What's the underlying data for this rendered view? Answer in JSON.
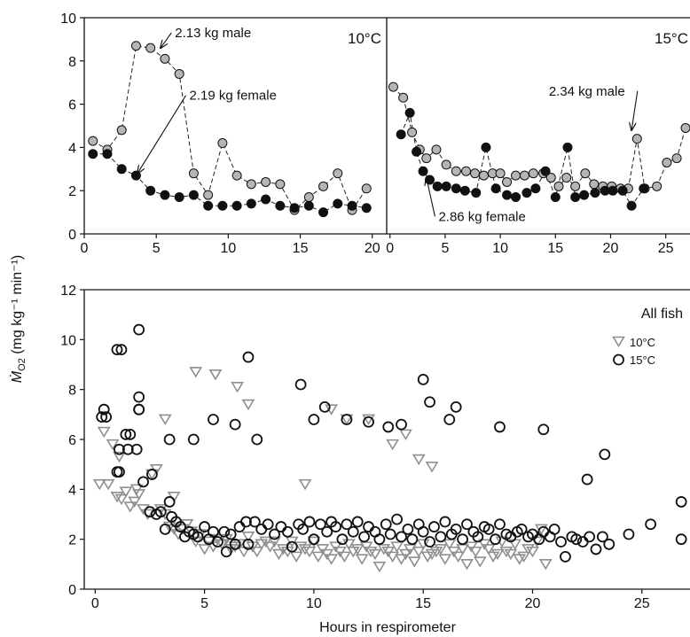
{
  "figure": {
    "ylabel_main": "Ṁ",
    "ylabel_sub": "O2",
    "ylabel_units": " (mg kg⁻¹ min⁻¹)",
    "xlabel": "Hours in respirometer"
  },
  "colors": {
    "gray": "#b5b5b5",
    "black": "#111111",
    "gray_tri": "#8f8f8f"
  },
  "chart_data": [
    {
      "id": "tl",
      "type": "line",
      "panel_label": "10°C",
      "xlim": [
        0,
        21
      ],
      "ylim": [
        0,
        10
      ],
      "xticks": [
        0,
        5,
        10,
        15,
        20
      ],
      "yticks": [
        0,
        2,
        4,
        6,
        8,
        10
      ],
      "series": [
        {
          "name": "2.13 kg male",
          "color": "gray",
          "x": [
            0.6,
            1.6,
            2.6,
            3.6,
            4.6,
            5.6,
            6.6,
            7.6,
            8.6,
            9.6,
            10.6,
            11.6,
            12.6,
            13.6,
            14.6,
            15.6,
            16.6,
            17.6,
            18.6,
            19.6
          ],
          "y": [
            4.3,
            3.9,
            4.8,
            8.7,
            8.6,
            8.1,
            7.4,
            2.8,
            1.8,
            4.2,
            2.7,
            2.3,
            2.4,
            2.3,
            1.1,
            1.7,
            2.2,
            2.8,
            1.1,
            2.1
          ]
        },
        {
          "name": "2.19 kg female",
          "color": "black",
          "x": [
            0.6,
            1.6,
            2.6,
            3.6,
            4.6,
            5.6,
            6.6,
            7.6,
            8.6,
            9.6,
            10.6,
            11.6,
            12.6,
            13.6,
            14.6,
            15.6,
            16.6,
            17.6,
            18.6,
            19.6
          ],
          "y": [
            3.7,
            3.7,
            3.0,
            2.7,
            2.0,
            1.8,
            1.7,
            1.8,
            1.3,
            1.3,
            1.3,
            1.4,
            1.6,
            1.3,
            1.2,
            1.3,
            1.0,
            1.4,
            1.3,
            1.2
          ]
        }
      ],
      "annotations": [
        {
          "text": "2.13 kg male",
          "label_x": 6.3,
          "label_y": 9.1,
          "arrow_to": [
            5.3,
            8.6
          ]
        },
        {
          "text": "2.19 kg female",
          "label_x": 7.3,
          "label_y": 6.2,
          "arrow_to": [
            3.7,
            2.8
          ]
        }
      ]
    },
    {
      "id": "tr",
      "type": "line",
      "panel_label": "15°C",
      "xlim": [
        -0.3,
        27.2
      ],
      "ylim": [
        0,
        10
      ],
      "xticks": [
        0,
        5,
        10,
        15,
        20,
        25
      ],
      "yticks": [],
      "series": [
        {
          "name": "2.34 kg male",
          "color": "gray",
          "x": [
            0.3,
            1.2,
            2.0,
            2.7,
            3.3,
            4.2,
            5.1,
            6.0,
            6.9,
            7.7,
            8.5,
            9.3,
            10.0,
            10.6,
            11.4,
            12.2,
            13.0,
            13.9,
            14.6,
            15.3,
            16.0,
            16.8,
            17.7,
            18.5,
            19.3,
            20.1,
            20.9,
            21.6,
            22.4,
            23.1,
            24.2,
            25.1,
            26.0,
            26.8
          ],
          "y": [
            6.8,
            6.3,
            4.7,
            3.9,
            3.5,
            3.9,
            3.2,
            2.9,
            2.9,
            2.8,
            2.7,
            2.8,
            2.8,
            2.4,
            2.7,
            2.7,
            2.8,
            2.8,
            2.6,
            2.2,
            2.6,
            2.2,
            2.8,
            2.3,
            2.2,
            2.2,
            2.1,
            2.1,
            4.4,
            2.1,
            2.2,
            3.3,
            3.5,
            4.9
          ]
        },
        {
          "name": "2.86 kg female",
          "color": "black",
          "x": [
            1.0,
            1.8,
            2.4,
            3.0,
            3.6,
            4.3,
            5.1,
            6.0,
            6.8,
            7.8,
            8.7,
            9.6,
            10.6,
            11.4,
            12.4,
            13.2,
            14.1,
            15.0,
            16.1,
            16.8,
            17.6,
            18.6,
            19.5,
            20.2,
            21.1,
            21.9,
            23.0
          ],
          "y": [
            4.6,
            5.6,
            3.8,
            2.9,
            2.5,
            2.2,
            2.2,
            2.1,
            2.0,
            1.9,
            4.0,
            2.1,
            1.8,
            1.7,
            1.9,
            2.1,
            2.9,
            1.7,
            4.0,
            1.7,
            1.8,
            1.9,
            2.0,
            2.0,
            2.0,
            1.3,
            2.1
          ]
        }
      ],
      "annotations": [
        {
          "text": "2.34 kg male",
          "label_x": 14.4,
          "label_y": 6.4,
          "arrow_to": [
            21.9,
            4.8
          ]
        },
        {
          "text": "2.86 kg female",
          "label_x": 4.4,
          "label_y": 0.6,
          "arrow_to": [
            3.3,
            2.6
          ]
        }
      ]
    },
    {
      "id": "bottom",
      "type": "scatter",
      "panel_label": "All fish",
      "xlim": [
        -0.5,
        27.2
      ],
      "ylim": [
        0,
        12
      ],
      "xticks": [
        0,
        5,
        10,
        15,
        20,
        25
      ],
      "yticks": [
        0,
        2,
        4,
        6,
        8,
        10,
        12
      ],
      "legend": {
        "placement": "top-right",
        "entries": [
          {
            "label": "10°C",
            "marker": "triangle"
          },
          {
            "label": "15°C",
            "marker": "circle"
          }
        ]
      },
      "series": [
        {
          "name": "10°C",
          "marker": "triangle",
          "x": [
            0.2,
            0.4,
            0.6,
            0.8,
            1.0,
            1.2,
            1.4,
            1.6,
            1.8,
            2.0,
            2.2,
            2.4,
            2.6,
            2.8,
            3.0,
            3.2,
            3.4,
            3.6,
            3.8,
            4.0,
            4.2,
            4.4,
            4.6,
            4.8,
            5.0,
            5.2,
            5.4,
            5.6,
            5.8,
            6.0,
            6.2,
            6.4,
            6.6,
            6.8,
            7.0,
            7.2,
            7.4,
            7.6,
            7.8,
            8.0,
            8.2,
            8.4,
            8.6,
            8.8,
            9.0,
            9.2,
            9.4,
            9.6,
            9.8,
            10.0,
            10.2,
            10.4,
            10.6,
            10.8,
            11.0,
            11.2,
            11.4,
            11.6,
            11.8,
            12.0,
            12.2,
            12.4,
            12.6,
            12.8,
            13.0,
            13.2,
            13.4,
            13.6,
            13.8,
            14.0,
            14.2,
            14.4,
            14.6,
            14.8,
            15.0,
            15.2,
            15.4,
            15.6,
            15.8,
            16.0,
            16.2,
            16.4,
            16.6,
            16.8,
            17.0,
            17.2,
            17.4,
            17.6,
            17.8,
            18.0,
            18.2,
            18.4,
            18.6,
            18.8,
            19.0,
            19.2,
            19.4,
            19.6,
            19.8,
            20.0,
            20.2,
            20.4,
            20.6,
            1.1,
            1.9,
            3.2,
            3.6,
            4.6,
            5.5,
            6.5,
            7.0,
            9.6,
            10.8,
            11.5,
            12.5,
            13.6,
            14.2,
            14.8,
            15.4
          ],
          "y": [
            4.2,
            6.3,
            4.2,
            5.8,
            3.7,
            3.6,
            3.9,
            3.3,
            3.5,
            3.8,
            3.2,
            3.0,
            4.6,
            4.8,
            3.2,
            3.0,
            2.5,
            2.4,
            2.2,
            2.4,
            2.6,
            2.3,
            1.9,
            2.2,
            1.6,
            1.9,
            1.7,
            2.0,
            1.8,
            2.0,
            1.6,
            1.7,
            1.8,
            1.5,
            2.1,
            1.7,
            1.5,
            1.8,
            1.9,
            1.7,
            1.9,
            1.4,
            1.6,
            1.5,
            1.9,
            1.3,
            1.7,
            1.6,
            1.5,
            1.9,
            1.3,
            1.6,
            1.4,
            1.2,
            1.7,
            1.5,
            1.3,
            1.8,
            1.5,
            1.6,
            1.2,
            1.7,
            1.5,
            1.4,
            0.9,
            1.6,
            1.5,
            1.3,
            1.7,
            1.2,
            1.4,
            1.6,
            1.1,
            1.5,
            1.8,
            1.3,
            1.4,
            1.5,
            1.6,
            1.2,
            1.8,
            1.5,
            1.3,
            1.6,
            1.0,
            1.7,
            1.5,
            1.1,
            1.8,
            1.6,
            1.3,
            1.4,
            1.9,
            1.5,
            1.4,
            1.8,
            1.2,
            1.3,
            1.6,
            1.5,
            1.9,
            2.4,
            1.0,
            5.3,
            4.0,
            6.8,
            3.7,
            8.7,
            8.6,
            8.1,
            7.4,
            4.2,
            7.2,
            6.8,
            6.8,
            5.8,
            6.2,
            5.2,
            4.9
          ]
        },
        {
          "name": "15°C",
          "marker": "circle",
          "x": [
            0.3,
            0.4,
            0.5,
            1.0,
            1.1,
            1.2,
            1.4,
            1.5,
            1.6,
            1.9,
            2.0,
            2.0,
            2.2,
            2.5,
            2.6,
            2.8,
            3.0,
            3.2,
            3.4,
            3.5,
            3.7,
            3.9,
            4.1,
            4.3,
            4.5,
            4.7,
            5.0,
            5.2,
            5.4,
            5.6,
            5.9,
            6.0,
            6.2,
            6.4,
            6.6,
            6.9,
            7.0,
            7.3,
            7.6,
            7.9,
            8.2,
            8.5,
            8.8,
            9.0,
            9.3,
            9.5,
            9.8,
            10.0,
            10.3,
            10.6,
            10.8,
            11.0,
            11.3,
            11.5,
            11.8,
            12.0,
            12.3,
            12.5,
            12.8,
            13.0,
            13.3,
            13.5,
            13.8,
            14.0,
            14.3,
            14.5,
            14.8,
            15.0,
            15.3,
            15.5,
            15.8,
            16.0,
            16.3,
            16.5,
            16.8,
            17.0,
            17.3,
            17.5,
            17.8,
            18.0,
            18.3,
            18.5,
            18.8,
            19.0,
            19.3,
            19.5,
            19.8,
            20.0,
            20.3,
            20.5,
            20.8,
            21.0,
            21.3,
            21.5,
            21.8,
            22.0,
            22.3,
            22.6,
            22.9,
            23.2,
            23.5,
            24.4,
            25.4,
            26.8,
            1.0,
            1.1,
            2.0,
            2.0,
            3.4,
            4.5,
            5.4,
            6.4,
            7.0,
            7.4,
            9.4,
            10.0,
            10.5,
            11.5,
            12.5,
            13.4,
            14.0,
            15.0,
            15.3,
            16.2,
            16.5,
            18.5,
            20.5,
            22.5,
            23.3,
            26.8
          ],
          "y": [
            6.9,
            7.2,
            6.9,
            4.7,
            5.6,
            9.6,
            6.2,
            5.6,
            6.2,
            5.6,
            7.2,
            10.4,
            4.3,
            3.1,
            4.6,
            3.0,
            3.1,
            2.4,
            3.5,
            2.9,
            2.7,
            2.5,
            2.1,
            2.3,
            2.2,
            2.1,
            2.5,
            2.0,
            2.3,
            1.9,
            2.3,
            1.5,
            2.2,
            1.8,
            2.5,
            2.7,
            1.8,
            2.7,
            2.4,
            2.6,
            2.2,
            2.5,
            2.3,
            1.7,
            2.6,
            2.4,
            2.7,
            2.0,
            2.6,
            2.3,
            2.7,
            2.5,
            2.0,
            2.6,
            2.3,
            2.7,
            2.1,
            2.5,
            2.3,
            2.0,
            2.6,
            2.2,
            2.8,
            2.1,
            2.4,
            2.0,
            2.6,
            2.3,
            1.9,
            2.5,
            2.1,
            2.7,
            2.2,
            2.4,
            2.0,
            2.6,
            2.3,
            2.1,
            2.5,
            2.4,
            2.0,
            2.6,
            2.2,
            2.1,
            2.3,
            2.4,
            2.1,
            2.2,
            2.0,
            2.3,
            2.1,
            2.4,
            1.9,
            1.3,
            2.1,
            2.0,
            1.9,
            2.1,
            1.6,
            2.1,
            1.8,
            2.2,
            2.6,
            2.0,
            9.6,
            4.7,
            7.7,
            7.2,
            6.0,
            6.0,
            6.8,
            6.6,
            9.3,
            6.0,
            8.2,
            6.8,
            7.3,
            6.8,
            6.7,
            6.5,
            6.6,
            8.4,
            7.5,
            6.8,
            7.3,
            6.5,
            6.4,
            4.4,
            5.4,
            3.5
          ]
        }
      ]
    }
  ]
}
